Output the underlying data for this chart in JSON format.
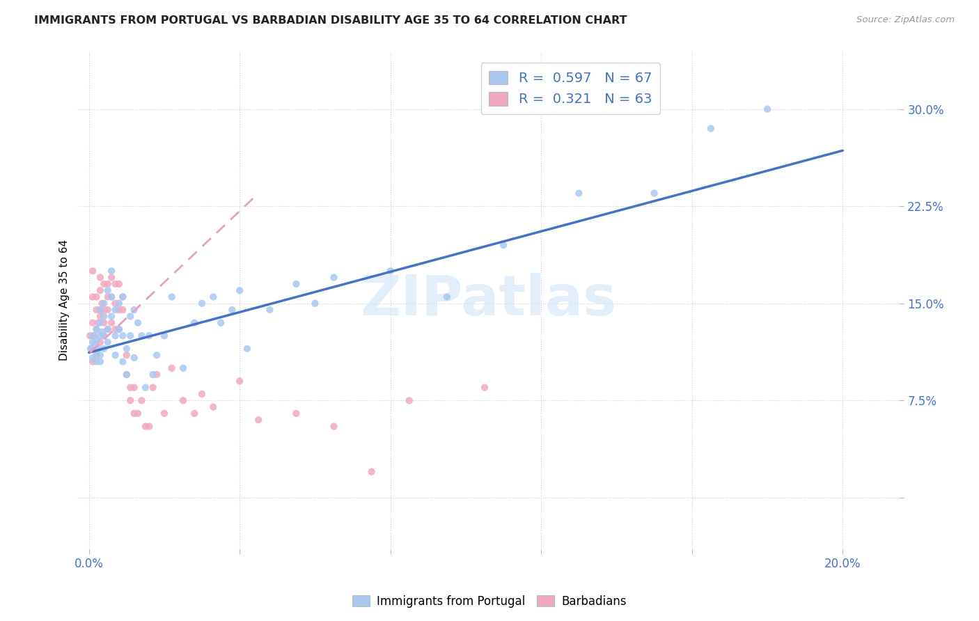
{
  "title": "IMMIGRANTS FROM PORTUGAL VS BARBADIAN DISABILITY AGE 35 TO 64 CORRELATION CHART",
  "source": "Source: ZipAtlas.com",
  "ylabel": "Disability Age 35 to 64",
  "x_ticks": [
    0.0,
    0.04,
    0.08,
    0.12,
    0.16,
    0.2
  ],
  "x_tick_labels_show": [
    "0.0%",
    "",
    "",
    "",
    "",
    "20.0%"
  ],
  "y_ticks": [
    0.0,
    0.075,
    0.15,
    0.225,
    0.3
  ],
  "y_tick_labels": [
    "",
    "7.5%",
    "15.0%",
    "22.5%",
    "30.0%"
  ],
  "xlim": [
    -0.003,
    0.215
  ],
  "ylim": [
    -0.04,
    0.345
  ],
  "legend_r1": "0.597",
  "legend_n1": "67",
  "legend_r2": "0.321",
  "legend_n2": "63",
  "legend_label1": "Immigrants from Portugal",
  "legend_label2": "Barbadians",
  "color_blue": "#A8C8F0",
  "color_pink": "#F0A8C0",
  "color_blue_line": "#4472C4",
  "color_pink_line": "#E8A0B8",
  "color_text_blue": "#4472C4",
  "watermark": "ZIPatlas",
  "blue_x": [
    0.0005,
    0.001,
    0.001,
    0.001,
    0.0015,
    0.002,
    0.002,
    0.002,
    0.002,
    0.0025,
    0.003,
    0.003,
    0.003,
    0.003,
    0.003,
    0.0035,
    0.004,
    0.004,
    0.004,
    0.004,
    0.005,
    0.005,
    0.005,
    0.006,
    0.006,
    0.006,
    0.007,
    0.007,
    0.007,
    0.008,
    0.008,
    0.009,
    0.009,
    0.009,
    0.01,
    0.01,
    0.011,
    0.011,
    0.012,
    0.012,
    0.013,
    0.014,
    0.015,
    0.016,
    0.017,
    0.018,
    0.02,
    0.022,
    0.025,
    0.028,
    0.03,
    0.033,
    0.035,
    0.038,
    0.04,
    0.042,
    0.048,
    0.055,
    0.06,
    0.065,
    0.08,
    0.095,
    0.11,
    0.13,
    0.15,
    0.165,
    0.18
  ],
  "blue_y": [
    0.115,
    0.12,
    0.108,
    0.125,
    0.118,
    0.112,
    0.13,
    0.105,
    0.122,
    0.115,
    0.125,
    0.145,
    0.11,
    0.105,
    0.135,
    0.128,
    0.14,
    0.115,
    0.15,
    0.125,
    0.13,
    0.12,
    0.16,
    0.155,
    0.14,
    0.175,
    0.125,
    0.145,
    0.11,
    0.15,
    0.13,
    0.155,
    0.125,
    0.105,
    0.115,
    0.095,
    0.125,
    0.14,
    0.108,
    0.145,
    0.135,
    0.125,
    0.085,
    0.125,
    0.095,
    0.11,
    0.125,
    0.155,
    0.1,
    0.135,
    0.15,
    0.155,
    0.135,
    0.145,
    0.16,
    0.115,
    0.145,
    0.165,
    0.15,
    0.17,
    0.175,
    0.155,
    0.195,
    0.235,
    0.235,
    0.285,
    0.3
  ],
  "pink_x": [
    0.0003,
    0.0005,
    0.001,
    0.001,
    0.001,
    0.001,
    0.0015,
    0.002,
    0.002,
    0.002,
    0.002,
    0.0025,
    0.003,
    0.003,
    0.003,
    0.003,
    0.003,
    0.0035,
    0.004,
    0.004,
    0.004,
    0.004,
    0.005,
    0.005,
    0.005,
    0.005,
    0.006,
    0.006,
    0.006,
    0.007,
    0.007,
    0.007,
    0.008,
    0.008,
    0.008,
    0.009,
    0.009,
    0.01,
    0.01,
    0.011,
    0.011,
    0.012,
    0.012,
    0.013,
    0.014,
    0.015,
    0.016,
    0.017,
    0.018,
    0.02,
    0.022,
    0.025,
    0.028,
    0.03,
    0.033,
    0.04,
    0.045,
    0.055,
    0.065,
    0.075,
    0.085,
    0.105,
    0.14
  ],
  "pink_y": [
    0.125,
    0.115,
    0.155,
    0.175,
    0.135,
    0.105,
    0.125,
    0.11,
    0.13,
    0.155,
    0.145,
    0.135,
    0.12,
    0.145,
    0.16,
    0.14,
    0.17,
    0.15,
    0.145,
    0.165,
    0.125,
    0.135,
    0.155,
    0.13,
    0.165,
    0.145,
    0.135,
    0.155,
    0.17,
    0.15,
    0.165,
    0.13,
    0.145,
    0.165,
    0.13,
    0.145,
    0.155,
    0.11,
    0.095,
    0.085,
    0.075,
    0.085,
    0.065,
    0.065,
    0.075,
    0.055,
    0.055,
    0.085,
    0.095,
    0.065,
    0.1,
    0.075,
    0.065,
    0.08,
    0.07,
    0.09,
    0.06,
    0.065,
    0.055,
    0.02,
    0.075,
    0.085,
    0.32
  ],
  "blue_line_x0": 0.0,
  "blue_line_x1": 0.2,
  "blue_line_y0": 0.112,
  "blue_line_y1": 0.268,
  "pink_line_x0": 0.0003,
  "pink_line_x1": 0.045,
  "pink_line_y0": 0.112,
  "pink_line_y1": 0.235
}
